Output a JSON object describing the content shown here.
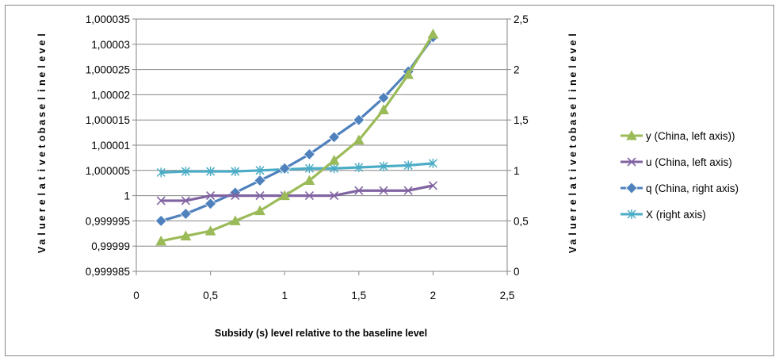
{
  "chart_data": {
    "type": "line",
    "xlabel": "Subsidy (s) level relative to the baseline level",
    "ylabel_left": "Value relative to baseline level",
    "ylabel_right": "Value relative to baseline level",
    "xlim": [
      0,
      2.5
    ],
    "ylim_left": [
      0.999985,
      1.000035
    ],
    "ylim_right": [
      0,
      2.5
    ],
    "x_ticks": [
      "0",
      "0,5",
      "1",
      "1,5",
      "2",
      "2,5"
    ],
    "y_left_ticks": [
      "0,999985",
      "0,99999",
      "0,999995",
      "1",
      "1,000005",
      "1,00001",
      "1,000015",
      "1,00002",
      "1,000025",
      "1,00003",
      "1,000035"
    ],
    "y_right_ticks": [
      "0",
      "0,5",
      "1",
      "1,5",
      "2",
      "2,5"
    ],
    "grid": "horizontal",
    "legend_position": "right",
    "x": [
      0.1667,
      0.3333,
      0.5,
      0.6667,
      0.8333,
      1.0,
      1.1667,
      1.3333,
      1.5,
      1.6667,
      1.8333,
      2.0
    ],
    "series": [
      {
        "name": "y (China, left axis))",
        "axis": "left",
        "color": "#9BBB59",
        "marker": "triangle",
        "values": [
          0.999991,
          0.999992,
          0.999993,
          0.999995,
          0.999997,
          1.0,
          1.000003,
          1.000007,
          1.000011,
          1.000017,
          1.000024,
          1.000032
        ]
      },
      {
        "name": "u (China, left axis)",
        "axis": "left",
        "color": "#8064A2",
        "marker": "x",
        "values": [
          0.999999,
          0.999999,
          1.0,
          1.0,
          1.0,
          1.0,
          1.0,
          1.0,
          1.000001,
          1.000001,
          1.000001,
          1.000002
        ]
      },
      {
        "name": "q (China, right axis)",
        "axis": "right",
        "color": "#4F81BD",
        "marker": "diamond",
        "values": [
          0.5,
          0.57,
          0.67,
          0.78,
          0.9,
          1.02,
          1.16,
          1.33,
          1.5,
          1.72,
          1.98,
          2.32
        ]
      },
      {
        "name": "X (right axis)",
        "axis": "right",
        "color": "#4BACC6",
        "marker": "star",
        "values": [
          0.98,
          0.99,
          0.99,
          0.99,
          1.0,
          1.01,
          1.02,
          1.02,
          1.03,
          1.04,
          1.05,
          1.07
        ]
      }
    ]
  }
}
